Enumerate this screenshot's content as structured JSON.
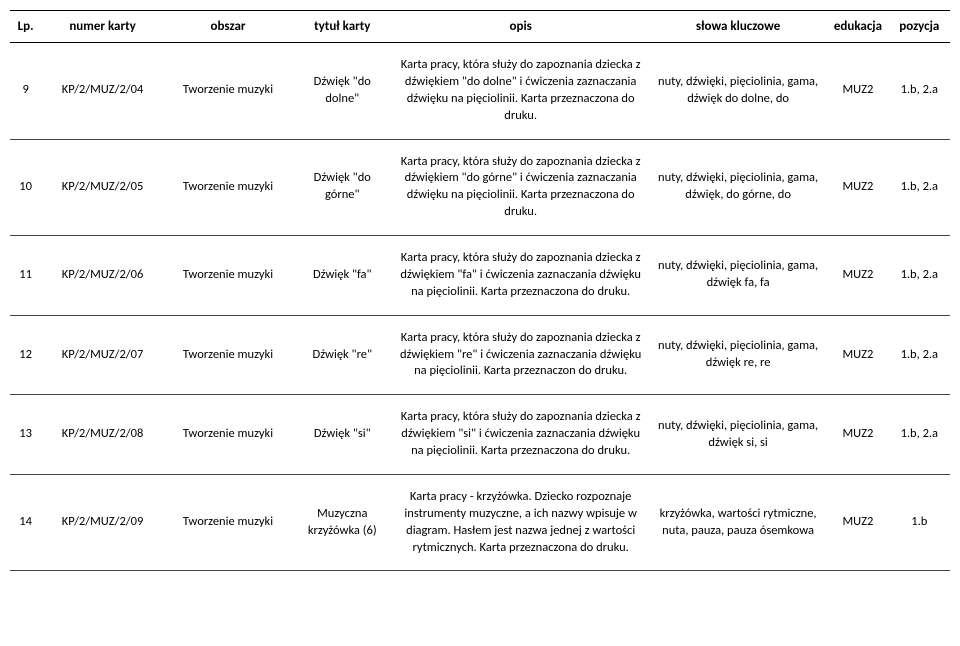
{
  "headers": {
    "lp": "Lp.",
    "numer": "numer karty",
    "obszar": "obszar",
    "tytul": "tytuł karty",
    "opis": "opis",
    "slowa": "słowa kluczowe",
    "edukacja": "edukacja",
    "pozycja": "pozycja"
  },
  "rows": [
    {
      "lp": "9",
      "numer": "KP/2/MUZ/2/04",
      "obszar": "Tworzenie muzyki",
      "tytul": "Dźwięk \"do dolne\"",
      "opis": "Karta pracy, która służy do zapoznania dziecka z dźwiękiem \"do dolne\" i ćwiczenia zaznaczania dźwięku na pięciolinii. Karta przeznaczona do druku.",
      "slowa": "nuty, dźwięki, pięciolinia, gama, dźwięk do dolne, do",
      "edukacja": "MUZ2",
      "pozycja": "1.b, 2.a"
    },
    {
      "lp": "10",
      "numer": "KP/2/MUZ/2/05",
      "obszar": "Tworzenie muzyki",
      "tytul": "Dźwięk \"do górne\"",
      "opis": "Karta pracy, która służy do zapoznania dziecka z dźwiękiem \"do górne\" i ćwiczenia zaznaczania dźwięku na pięciolinii. Karta przeznaczona do druku.",
      "slowa": "nuty, dźwięki, pięciolinia, gama, dźwięk, do górne, do",
      "edukacja": "MUZ2",
      "pozycja": "1.b, 2.a"
    },
    {
      "lp": "11",
      "numer": "KP/2/MUZ/2/06",
      "obszar": "Tworzenie muzyki",
      "tytul": "Dźwięk \"fa\"",
      "opis": "Karta pracy, która służy do zapoznania dziecka z dźwiękiem \"fa\" i ćwiczenia zaznaczania dźwięku na pięciolinii. Karta przeznaczona do druku.",
      "slowa": "nuty, dźwięki, pięciolinia, gama, dźwięk fa, fa",
      "edukacja": "MUZ2",
      "pozycja": "1.b, 2.a"
    },
    {
      "lp": "12",
      "numer": "KP/2/MUZ/2/07",
      "obszar": "Tworzenie muzyki",
      "tytul": "Dźwięk \"re\"",
      "opis": "Karta pracy, która służy do zapoznania dziecka z dźwiękiem \"re\" i ćwiczenia zaznaczania dźwięku na pięciolinii. Karta przeznaczon do druku.",
      "slowa": "nuty, dźwięki, pięciolinia, gama, dźwięk re, re",
      "edukacja": "MUZ2",
      "pozycja": "1.b, 2.a"
    },
    {
      "lp": "13",
      "numer": "KP/2/MUZ/2/08",
      "obszar": "Tworzenie muzyki",
      "tytul": "Dźwięk \"si\"",
      "opis": "Karta pracy, która służy do zapoznania dziecka z dźwiękiem \"si\" i ćwiczenia zaznaczania dźwięku na pięciolinii. Karta przeznaczona do druku.",
      "slowa": "nuty, dźwięki, pięciolinia, gama, dźwięk si, si",
      "edukacja": "MUZ2",
      "pozycja": "1.b, 2.a"
    },
    {
      "lp": "14",
      "numer": "KP/2/MUZ/2/09",
      "obszar": "Tworzenie muzyki",
      "tytul": "Muzyczna krzyżówka (6)",
      "opis": "Karta pracy - krzyżówka. Dziecko rozpoznaje instrumenty muzyczne, a ich nazwy wpisuje w diagram. Hasłem jest nazwa jednej z wartości rytmicznych. Karta przeznaczona do druku.",
      "slowa": "krzyżówka, wartości rytmiczne, nuta, pauza, pauza ósemkowa",
      "edukacja": "MUZ2",
      "pozycja": "1.b"
    }
  ]
}
